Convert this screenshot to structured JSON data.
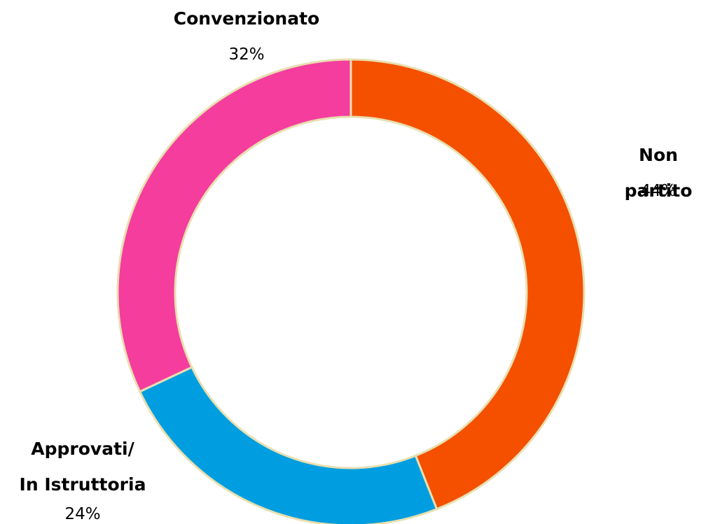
{
  "chart_data": {
    "type": "donut",
    "categories": [
      "Non partito",
      "Approvati/\nIn Istruttoria",
      "Convenzionato"
    ],
    "values": [
      44,
      24,
      32
    ],
    "value_labels": [
      "44%",
      "24%",
      "32%"
    ],
    "colors": [
      "#f55000",
      "#009ee0",
      "#f53d9e"
    ]
  }
}
